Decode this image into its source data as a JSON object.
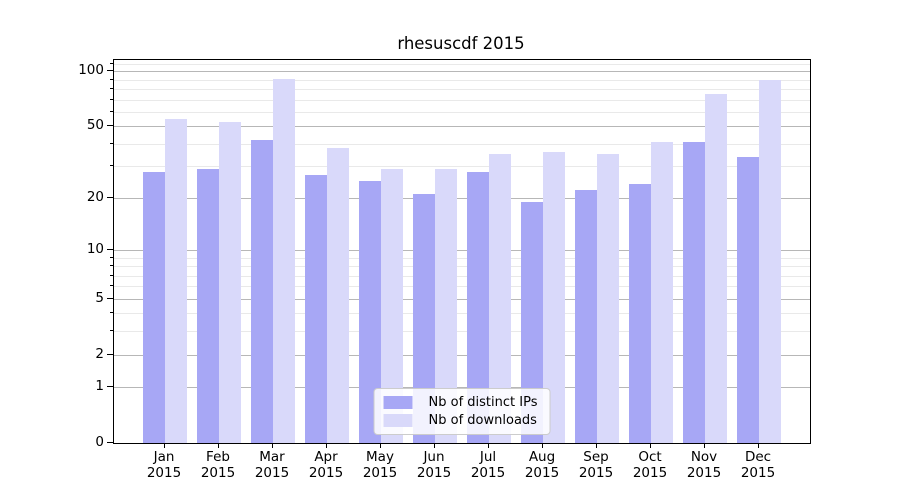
{
  "title": "rhesuscdf 2015",
  "chart_data": {
    "type": "bar",
    "title": "rhesuscdf 2015",
    "categories": [
      "Jan",
      "Feb",
      "Mar",
      "Apr",
      "May",
      "Jun",
      "Jul",
      "Aug",
      "Sep",
      "Oct",
      "Nov",
      "Dec"
    ],
    "year": "2015",
    "series": [
      {
        "name": "Nb of distinct IPs",
        "color": "#a7a7f5",
        "values": [
          28,
          29,
          42,
          27,
          25,
          21,
          28,
          19,
          22,
          24,
          41,
          34
        ]
      },
      {
        "name": "Nb of downloads",
        "color": "#d9d9fa",
        "values": [
          55,
          53,
          91,
          38,
          29,
          29,
          35,
          36,
          35,
          41,
          75,
          89
        ]
      }
    ],
    "xlabel": "",
    "ylabel": "",
    "yscale": "log1p",
    "ylim": [
      0,
      115
    ],
    "y_major_ticks": [
      100,
      50,
      20,
      10,
      5,
      2,
      1,
      0
    ],
    "y_minor_ticks": [
      3,
      4,
      6,
      7,
      8,
      9,
      30,
      40,
      60,
      70,
      80,
      90,
      110
    ],
    "grid": "both",
    "legend_position": "lower center"
  },
  "legend": {
    "items": [
      "Nb of distinct IPs",
      "Nb of downloads"
    ]
  },
  "colors": {
    "distinct_ips_bar": "#a7a7f5",
    "downloads_bar": "#d9d9fa",
    "major_gridline": "#b7b7b7",
    "minor_gridline": "#e9e9e9",
    "axis": "#000000"
  }
}
